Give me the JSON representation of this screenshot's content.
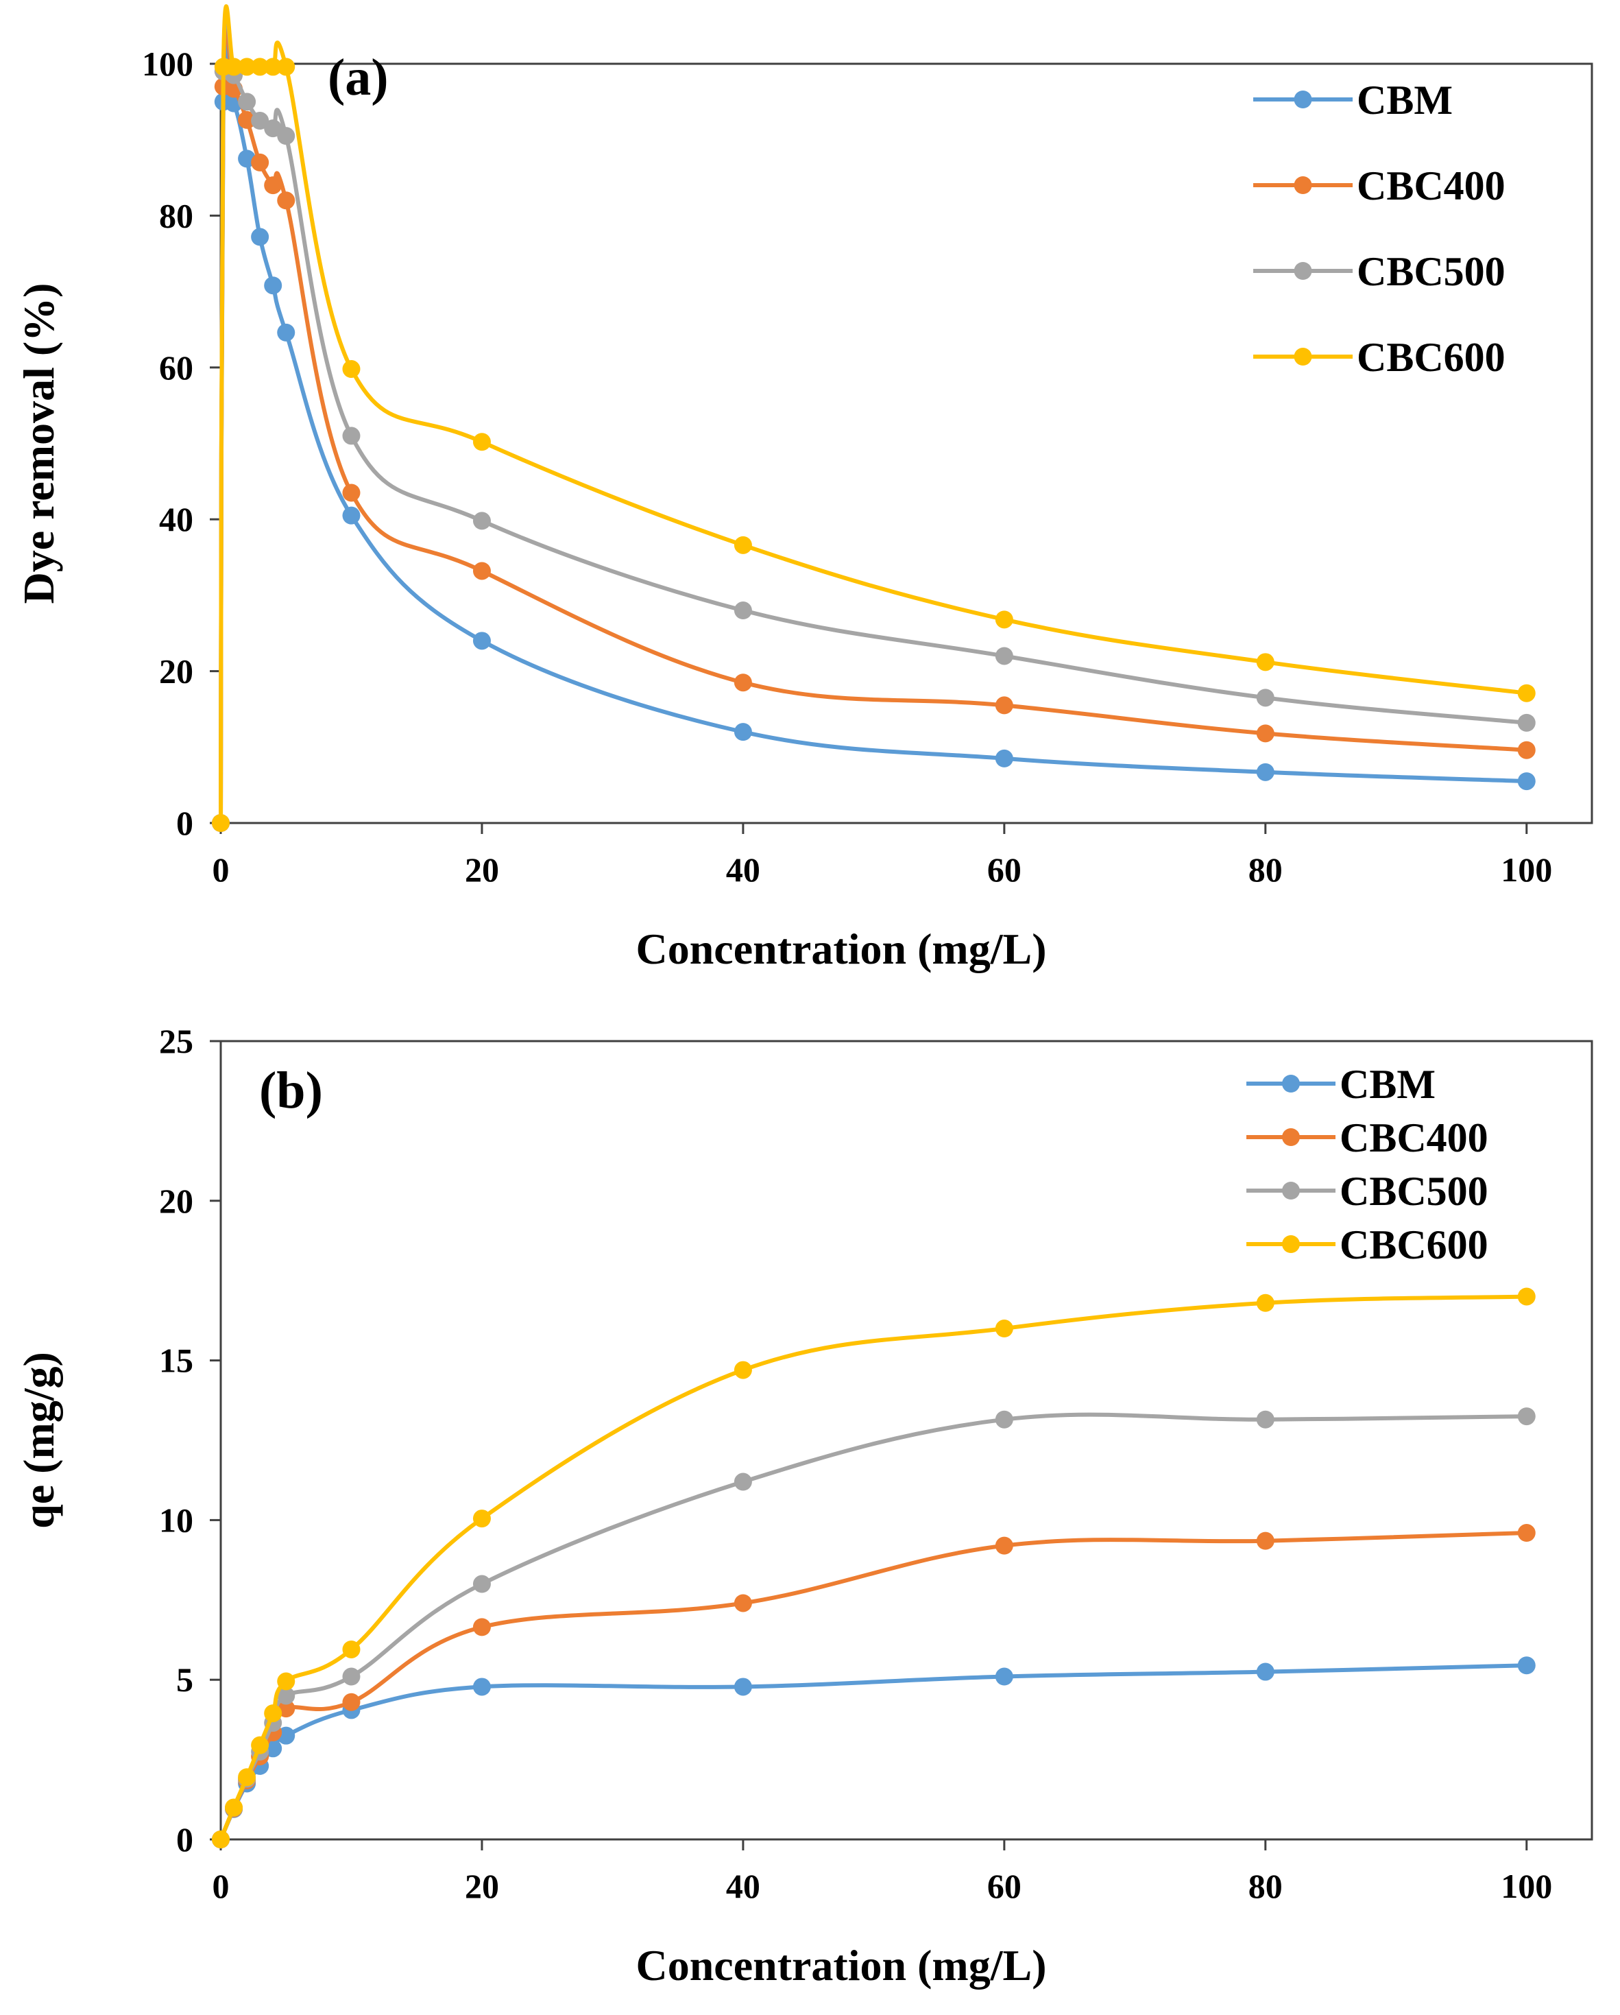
{
  "chart_data": [
    {
      "type": "line",
      "panel_label": "(a)",
      "xlabel": "Concentration (mg/L)",
      "ylabel": "Dye removal (%)",
      "xlim": [
        0,
        105
      ],
      "ylim": [
        0,
        100
      ],
      "x_ticks": [
        0,
        20,
        40,
        60,
        80,
        100
      ],
      "y_ticks": [
        0,
        20,
        40,
        60,
        80,
        100
      ],
      "legend_position": "top-right",
      "series": [
        {
          "name": "CBM",
          "color": "#5B9BD5",
          "x": [
            0,
            0.2,
            1,
            2,
            3,
            4,
            5,
            10,
            20,
            40,
            60,
            80,
            100
          ],
          "y": [
            0,
            95,
            94.8,
            87.5,
            77.2,
            70.8,
            64.6,
            40.5,
            24,
            12,
            8.5,
            6.7,
            5.5
          ]
        },
        {
          "name": "CBC400",
          "color": "#ED7D31",
          "x": [
            0,
            0.2,
            1,
            2,
            3,
            4,
            5,
            10,
            20,
            40,
            60,
            80,
            100
          ],
          "y": [
            0,
            97,
            96.7,
            92.6,
            87,
            84,
            82,
            43.5,
            33.2,
            18.5,
            15.5,
            11.8,
            9.6
          ]
        },
        {
          "name": "CBC500",
          "color": "#A5A5A5",
          "x": [
            0,
            0.2,
            1,
            2,
            3,
            4,
            5,
            10,
            20,
            40,
            60,
            80,
            100
          ],
          "y": [
            0,
            99,
            98.5,
            95,
            92.5,
            91.5,
            90.5,
            51,
            39.8,
            28,
            22,
            16.5,
            13.2
          ]
        },
        {
          "name": "CBC600",
          "color": "#FFC000",
          "x": [
            0,
            0.2,
            1,
            2,
            3,
            4,
            5,
            10,
            20,
            40,
            60,
            80,
            100
          ],
          "y": [
            0,
            99.6,
            99.6,
            99.6,
            99.6,
            99.6,
            99.6,
            59.8,
            50.2,
            36.6,
            26.8,
            21.2,
            17.1
          ]
        }
      ]
    },
    {
      "type": "line",
      "panel_label": "(b)",
      "xlabel": "Concentration (mg/L)",
      "ylabel": "qe (mg/g)",
      "xlim": [
        0,
        105
      ],
      "ylim": [
        0,
        25
      ],
      "x_ticks": [
        0,
        20,
        40,
        60,
        80,
        100
      ],
      "y_ticks": [
        0,
        5,
        10,
        15,
        20,
        25
      ],
      "legend_position": "top-right",
      "series": [
        {
          "name": "CBM",
          "color": "#5B9BD5",
          "x": [
            0,
            1,
            2,
            3,
            4,
            5,
            10,
            20,
            40,
            60,
            80,
            100
          ],
          "y": [
            0,
            0.95,
            1.75,
            2.3,
            2.85,
            3.25,
            4.05,
            4.78,
            4.78,
            5.1,
            5.25,
            5.45
          ]
        },
        {
          "name": "CBC400",
          "color": "#ED7D31",
          "x": [
            0,
            1,
            2,
            3,
            4,
            5,
            10,
            20,
            40,
            60,
            80,
            100
          ],
          "y": [
            0,
            0.97,
            1.85,
            2.6,
            3.35,
            4.1,
            4.3,
            6.65,
            7.4,
            9.2,
            9.35,
            9.6
          ]
        },
        {
          "name": "CBC500",
          "color": "#A5A5A5",
          "x": [
            0,
            1,
            2,
            3,
            4,
            5,
            10,
            20,
            40,
            60,
            80,
            100
          ],
          "y": [
            0,
            0.99,
            1.9,
            2.75,
            3.65,
            4.5,
            5.1,
            8,
            11.2,
            13.15,
            13.15,
            13.25
          ]
        },
        {
          "name": "CBC600",
          "color": "#FFC000",
          "x": [
            0,
            1,
            2,
            3,
            4,
            5,
            10,
            20,
            40,
            60,
            80,
            100
          ],
          "y": [
            0,
            1.0,
            1.95,
            2.95,
            3.95,
            4.95,
            5.95,
            10.05,
            14.7,
            16,
            16.8,
            17
          ]
        }
      ]
    }
  ]
}
